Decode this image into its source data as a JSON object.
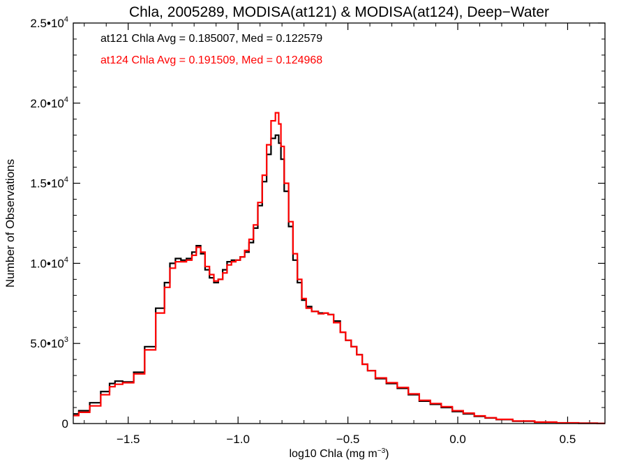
{
  "chart_data": {
    "type": "line",
    "step": true,
    "title": "Chla, 2005289, MODISA(at121) & MODISA(at124), Deep−Water",
    "xlabel_main": "log10 Chla (mg m",
    "xlabel_sup": "−3",
    "xlabel_close": ")",
    "ylabel": "Number of Observations",
    "xlim": [
      -1.75,
      0.67
    ],
    "ylim": [
      0,
      25000
    ],
    "x_ticks": [
      {
        "value": -1.5,
        "label": "−1.5"
      },
      {
        "value": -1.0,
        "label": "−1.0"
      },
      {
        "value": -0.5,
        "label": "−0.5"
      },
      {
        "value": 0.0,
        "label": "0.0"
      },
      {
        "value": 0.5,
        "label": "0.5"
      }
    ],
    "y_ticks": [
      {
        "value": 0,
        "base": "0",
        "exp": ""
      },
      {
        "value": 5000,
        "base": "5.0•10",
        "exp": "3"
      },
      {
        "value": 10000,
        "base": "1.0•10",
        "exp": "4"
      },
      {
        "value": 15000,
        "base": "1.5•10",
        "exp": "4"
      },
      {
        "value": 20000,
        "base": "2.0•10",
        "exp": "4"
      },
      {
        "value": 25000,
        "base": "2.5•10",
        "exp": "4"
      }
    ],
    "annotations": [
      {
        "text": "at121 Chla Avg = 0.185007, Med = 0.122579",
        "color": "#000000"
      },
      {
        "text": "at124 Chla Avg = 0.191509, Med = 0.124968",
        "color": "#ff0000"
      }
    ],
    "series": [
      {
        "color": "#000000",
        "points": [
          [
            -1.75,
            600
          ],
          [
            -1.7,
            800
          ],
          [
            -1.65,
            1300
          ],
          [
            -1.6,
            2000
          ],
          [
            -1.57,
            2500
          ],
          [
            -1.55,
            2650
          ],
          [
            -1.5,
            2600
          ],
          [
            -1.45,
            3200
          ],
          [
            -1.4,
            4800
          ],
          [
            -1.35,
            7200
          ],
          [
            -1.32,
            8800
          ],
          [
            -1.3,
            10000
          ],
          [
            -1.27,
            10300
          ],
          [
            -1.25,
            10200
          ],
          [
            -1.22,
            10300
          ],
          [
            -1.2,
            10700
          ],
          [
            -1.18,
            11100
          ],
          [
            -1.16,
            10600
          ],
          [
            -1.14,
            9600
          ],
          [
            -1.12,
            9100
          ],
          [
            -1.1,
            8800
          ],
          [
            -1.08,
            9000
          ],
          [
            -1.06,
            9600
          ],
          [
            -1.04,
            10100
          ],
          [
            -1.02,
            10200
          ],
          [
            -1.0,
            10200
          ],
          [
            -0.98,
            10400
          ],
          [
            -0.96,
            10700
          ],
          [
            -0.94,
            11300
          ],
          [
            -0.92,
            12200
          ],
          [
            -0.9,
            13600
          ],
          [
            -0.88,
            15100
          ],
          [
            -0.86,
            16800
          ],
          [
            -0.84,
            17800
          ],
          [
            -0.82,
            18000
          ],
          [
            -0.81,
            17500
          ],
          [
            -0.8,
            16500
          ],
          [
            -0.78,
            14500
          ],
          [
            -0.76,
            12300
          ],
          [
            -0.74,
            10200
          ],
          [
            -0.72,
            8800
          ],
          [
            -0.7,
            7700
          ],
          [
            -0.68,
            7300
          ],
          [
            -0.65,
            7000
          ],
          [
            -0.62,
            6900
          ],
          [
            -0.6,
            6900
          ],
          [
            -0.58,
            6800
          ],
          [
            -0.55,
            6400
          ],
          [
            -0.52,
            5700
          ],
          [
            -0.5,
            5200
          ],
          [
            -0.47,
            4800
          ],
          [
            -0.45,
            4300
          ],
          [
            -0.42,
            3700
          ],
          [
            -0.4,
            3300
          ],
          [
            -0.35,
            2800
          ],
          [
            -0.3,
            2500
          ],
          [
            -0.25,
            2200
          ],
          [
            -0.2,
            1800
          ],
          [
            -0.15,
            1400
          ],
          [
            -0.1,
            1200
          ],
          [
            -0.05,
            1000
          ],
          [
            0.0,
            750
          ],
          [
            0.05,
            600
          ],
          [
            0.1,
            450
          ],
          [
            0.15,
            350
          ],
          [
            0.2,
            250
          ],
          [
            0.3,
            150
          ],
          [
            0.4,
            80
          ],
          [
            0.5,
            40
          ],
          [
            0.6,
            20
          ],
          [
            0.67,
            10
          ]
        ]
      },
      {
        "color": "#ff0000",
        "points": [
          [
            -1.75,
            500
          ],
          [
            -1.7,
            700
          ],
          [
            -1.65,
            1100
          ],
          [
            -1.6,
            1800
          ],
          [
            -1.57,
            2300
          ],
          [
            -1.55,
            2450
          ],
          [
            -1.5,
            2550
          ],
          [
            -1.45,
            3100
          ],
          [
            -1.4,
            4600
          ],
          [
            -1.35,
            6900
          ],
          [
            -1.32,
            8500
          ],
          [
            -1.3,
            9700
          ],
          [
            -1.27,
            10100
          ],
          [
            -1.25,
            10100
          ],
          [
            -1.22,
            10200
          ],
          [
            -1.2,
            10500
          ],
          [
            -1.18,
            11000
          ],
          [
            -1.16,
            10700
          ],
          [
            -1.14,
            9800
          ],
          [
            -1.12,
            9300
          ],
          [
            -1.1,
            8900
          ],
          [
            -1.08,
            9000
          ],
          [
            -1.06,
            9400
          ],
          [
            -1.04,
            9900
          ],
          [
            -1.02,
            10100
          ],
          [
            -1.0,
            10200
          ],
          [
            -0.98,
            10400
          ],
          [
            -0.96,
            10800
          ],
          [
            -0.94,
            11500
          ],
          [
            -0.92,
            12400
          ],
          [
            -0.9,
            13800
          ],
          [
            -0.88,
            15500
          ],
          [
            -0.86,
            17400
          ],
          [
            -0.84,
            18900
          ],
          [
            -0.82,
            19400
          ],
          [
            -0.81,
            18700
          ],
          [
            -0.8,
            17300
          ],
          [
            -0.78,
            15000
          ],
          [
            -0.76,
            12600
          ],
          [
            -0.74,
            10600
          ],
          [
            -0.72,
            9000
          ],
          [
            -0.7,
            7800
          ],
          [
            -0.68,
            7200
          ],
          [
            -0.65,
            7000
          ],
          [
            -0.62,
            6850
          ],
          [
            -0.6,
            6900
          ],
          [
            -0.58,
            6800
          ],
          [
            -0.55,
            6300
          ],
          [
            -0.52,
            5700
          ],
          [
            -0.5,
            5200
          ],
          [
            -0.47,
            4800
          ],
          [
            -0.45,
            4300
          ],
          [
            -0.42,
            3700
          ],
          [
            -0.4,
            3300
          ],
          [
            -0.35,
            2850
          ],
          [
            -0.3,
            2550
          ],
          [
            -0.25,
            2250
          ],
          [
            -0.2,
            1850
          ],
          [
            -0.15,
            1450
          ],
          [
            -0.1,
            1250
          ],
          [
            -0.05,
            1050
          ],
          [
            0.0,
            800
          ],
          [
            0.05,
            650
          ],
          [
            0.1,
            480
          ],
          [
            0.15,
            360
          ],
          [
            0.2,
            260
          ],
          [
            0.3,
            160
          ],
          [
            0.4,
            90
          ],
          [
            0.5,
            45
          ],
          [
            0.6,
            20
          ],
          [
            0.67,
            10
          ]
        ]
      }
    ]
  }
}
